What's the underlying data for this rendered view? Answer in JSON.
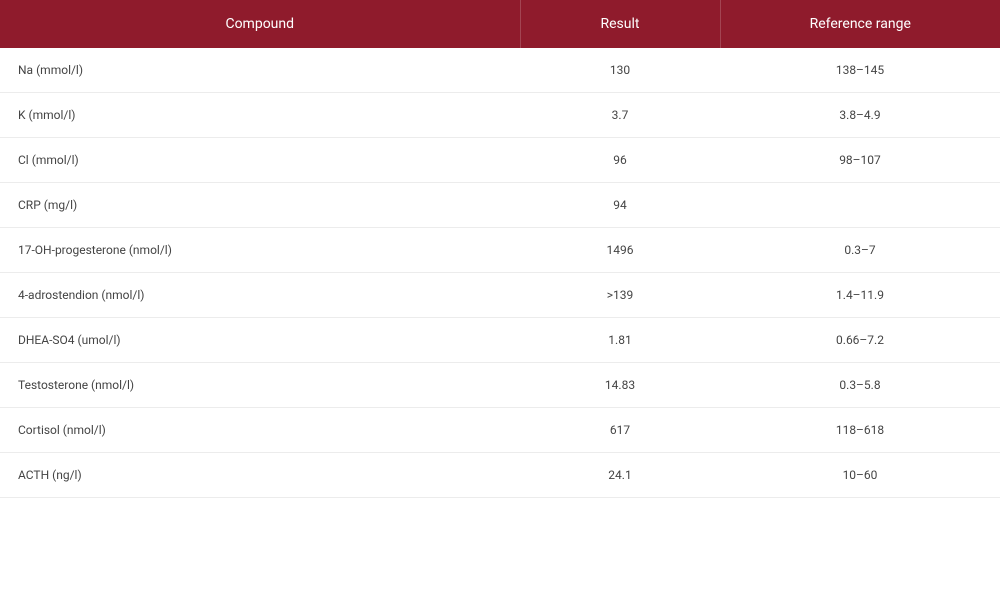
{
  "table": {
    "type": "table",
    "header_bg": "#8f1b2c",
    "header_fg": "#ffffff",
    "row_border": "#ececec",
    "text_color": "#444444",
    "header_fontsize": 14,
    "cell_fontsize": 12,
    "columns": [
      {
        "key": "compound",
        "label": "Compound",
        "align": "left",
        "width_pct": 52
      },
      {
        "key": "result",
        "label": "Result",
        "align": "center",
        "width_pct": 20
      },
      {
        "key": "range",
        "label": "Reference range",
        "align": "center",
        "width_pct": 28
      }
    ],
    "rows": [
      {
        "compound": "Na (mmol/l)",
        "result": "130",
        "range": "138–145"
      },
      {
        "compound": "K (mmol/l)",
        "result": "3.7",
        "range": "3.8–4.9"
      },
      {
        "compound": "Cl (mmol/l)",
        "result": "96",
        "range": "98–107"
      },
      {
        "compound": "CRP (mg/l)",
        "result": "94",
        "range": ""
      },
      {
        "compound": "17-OH-progesterone (nmol/l)",
        "result": "1496",
        "range": "0.3–7"
      },
      {
        "compound": "4-adrostendion (nmol/l)",
        "result": ">139",
        "range": "1.4–11.9"
      },
      {
        "compound": "DHEA-SO4 (umol/l)",
        "result": "1.81",
        "range": "0.66–7.2"
      },
      {
        "compound": "Testosterone (nmol/l)",
        "result": "14.83",
        "range": "0.3–5.8"
      },
      {
        "compound": "Cortisol (nmol/l)",
        "result": "617",
        "range": "118–618"
      },
      {
        "compound": "ACTH (ng/l)",
        "result": "24.1",
        "range": "10–60"
      }
    ]
  }
}
